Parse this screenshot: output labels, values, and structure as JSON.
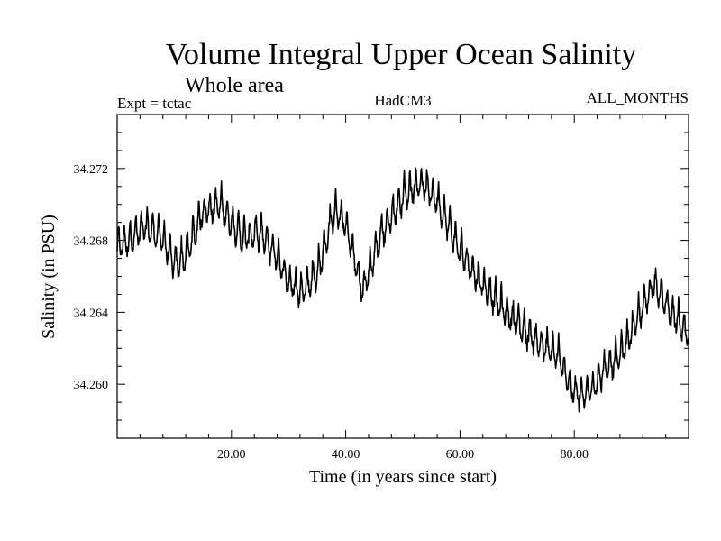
{
  "chart_data": {
    "type": "line",
    "title": "Volume Integral Upper Ocean Salinity",
    "subtitle": "Whole area",
    "expt_label": "Expt = tctac",
    "model_label": "HadCM3",
    "months_label": "ALL_MONTHS",
    "xlabel": "Time (in years since start)",
    "ylabel": "Salinity (in PSU)",
    "xlim": [
      0,
      100
    ],
    "ylim": [
      34.257,
      34.275
    ],
    "x_ticks": [
      {
        "value": 20,
        "label": "20.00"
      },
      {
        "value": 40,
        "label": "40.00"
      },
      {
        "value": 60,
        "label": "60.00"
      },
      {
        "value": 80,
        "label": "80.00"
      }
    ],
    "y_ticks": [
      {
        "value": 34.26,
        "label": "34.260"
      },
      {
        "value": 34.264,
        "label": "34.264"
      },
      {
        "value": 34.268,
        "label": "34.268"
      },
      {
        "value": 34.272,
        "label": "34.272"
      }
    ],
    "grid": false,
    "legend": "none",
    "series": [
      {
        "name": "Salinity",
        "sampling": "monthly",
        "seasonal_amplitude": 0.0011,
        "trend_x": [
          0,
          2,
          5,
          8,
          10,
          12,
          15,
          18,
          22,
          25,
          28,
          30,
          32,
          35,
          38,
          40,
          43,
          46,
          50,
          53,
          56,
          60,
          63,
          66,
          70,
          74,
          77,
          80,
          82,
          85,
          88,
          92,
          94,
          96,
          98,
          100
        ],
        "trend_y": [
          34.2677,
          34.2681,
          34.2688,
          34.2682,
          34.2667,
          34.2672,
          34.2697,
          34.27,
          34.2682,
          34.2685,
          34.2672,
          34.2657,
          34.2652,
          34.2662,
          34.2697,
          34.2689,
          34.2652,
          34.2683,
          34.2705,
          34.2713,
          34.2703,
          34.2675,
          34.266,
          34.2648,
          34.2634,
          34.2623,
          34.2617,
          34.2596,
          34.2594,
          34.2607,
          34.2616,
          34.2643,
          34.2658,
          34.2645,
          34.2636,
          34.2627
        ]
      }
    ]
  }
}
